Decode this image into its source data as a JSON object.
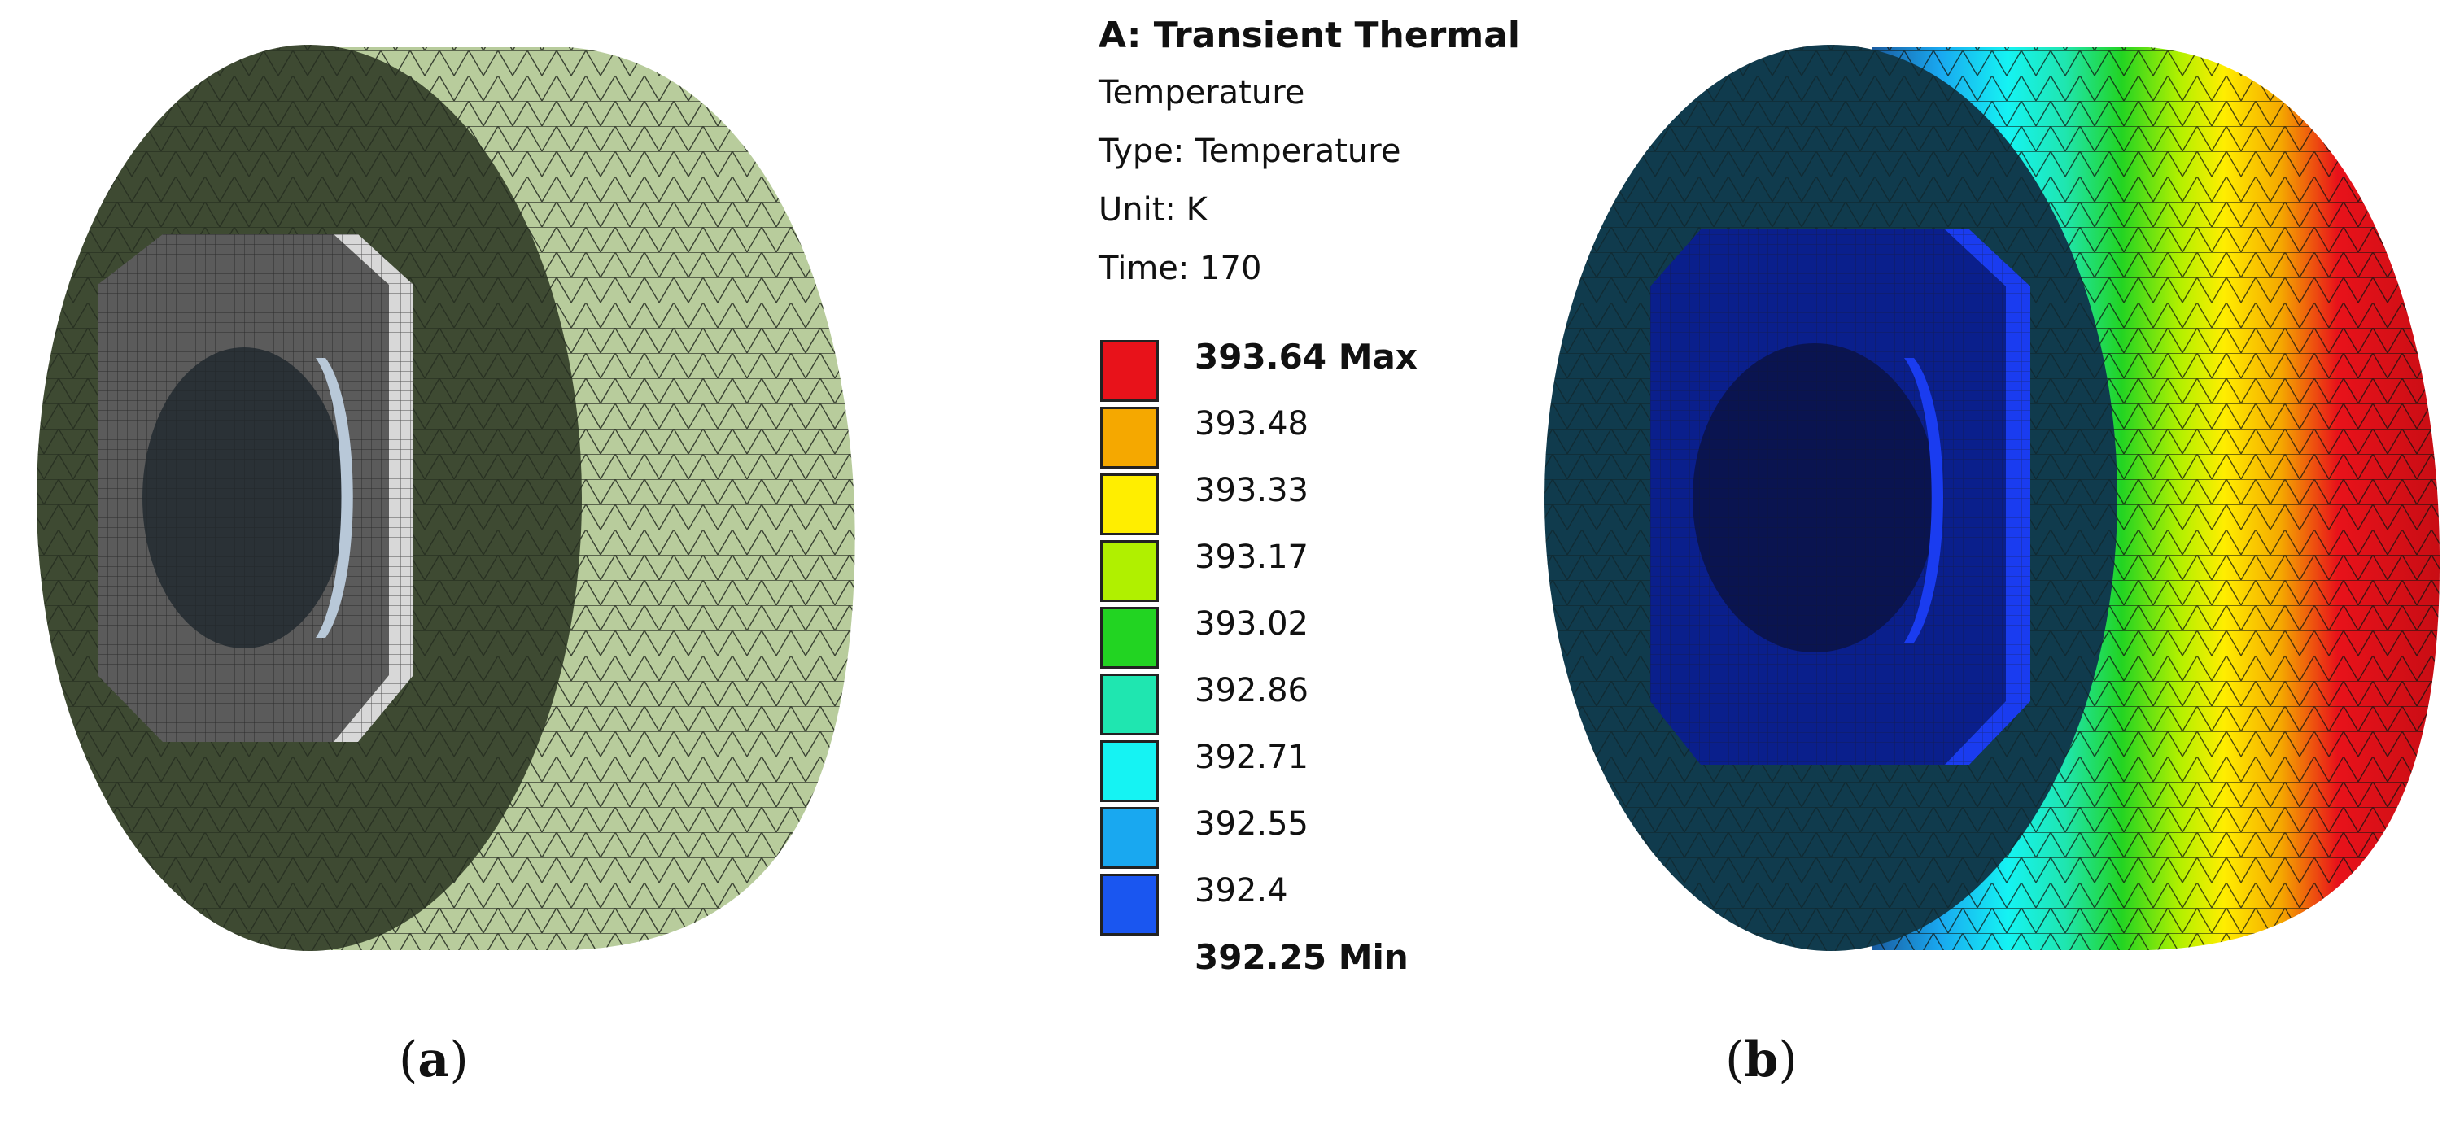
{
  "panels": [
    {
      "caption_open": "(",
      "caption_letter": "a",
      "caption_close": ")"
    },
    {
      "caption_open": "(",
      "caption_letter": "b",
      "caption_close": ")"
    }
  ],
  "legend": {
    "title": "A: Transient Thermal",
    "lines": [
      "Temperature",
      "Type: Temperature",
      "Unit: K",
      "Time: 170"
    ],
    "levels": [
      {
        "label": "393.64 Max",
        "color": "#e8121a",
        "bold": true
      },
      {
        "label": "393.48",
        "color": "#f5a800"
      },
      {
        "label": "393.33",
        "color": "#ffee00"
      },
      {
        "label": "393.17",
        "color": "#b0f000"
      },
      {
        "label": "393.02",
        "color": "#22d422"
      },
      {
        "label": "392.86",
        "color": "#1fe6b0"
      },
      {
        "label": "392.71",
        "color": "#15f3f3"
      },
      {
        "label": "392.55",
        "color": "#19a8f0"
      },
      {
        "label": "392.4",
        "color": "#1a56f0"
      },
      {
        "label": "392.25 Min",
        "color": "#0a0ae8",
        "bold": true
      }
    ]
  },
  "colors": {
    "mesh_front": "#3e4a32",
    "mesh_side": "#b8cc9c",
    "mesh_inner": "#585858",
    "mesh_disc": "#2a3136",
    "temp_front": "#103b4d",
    "temp_inner": "#0a1f8c",
    "temp_disc": "#0a1450"
  }
}
